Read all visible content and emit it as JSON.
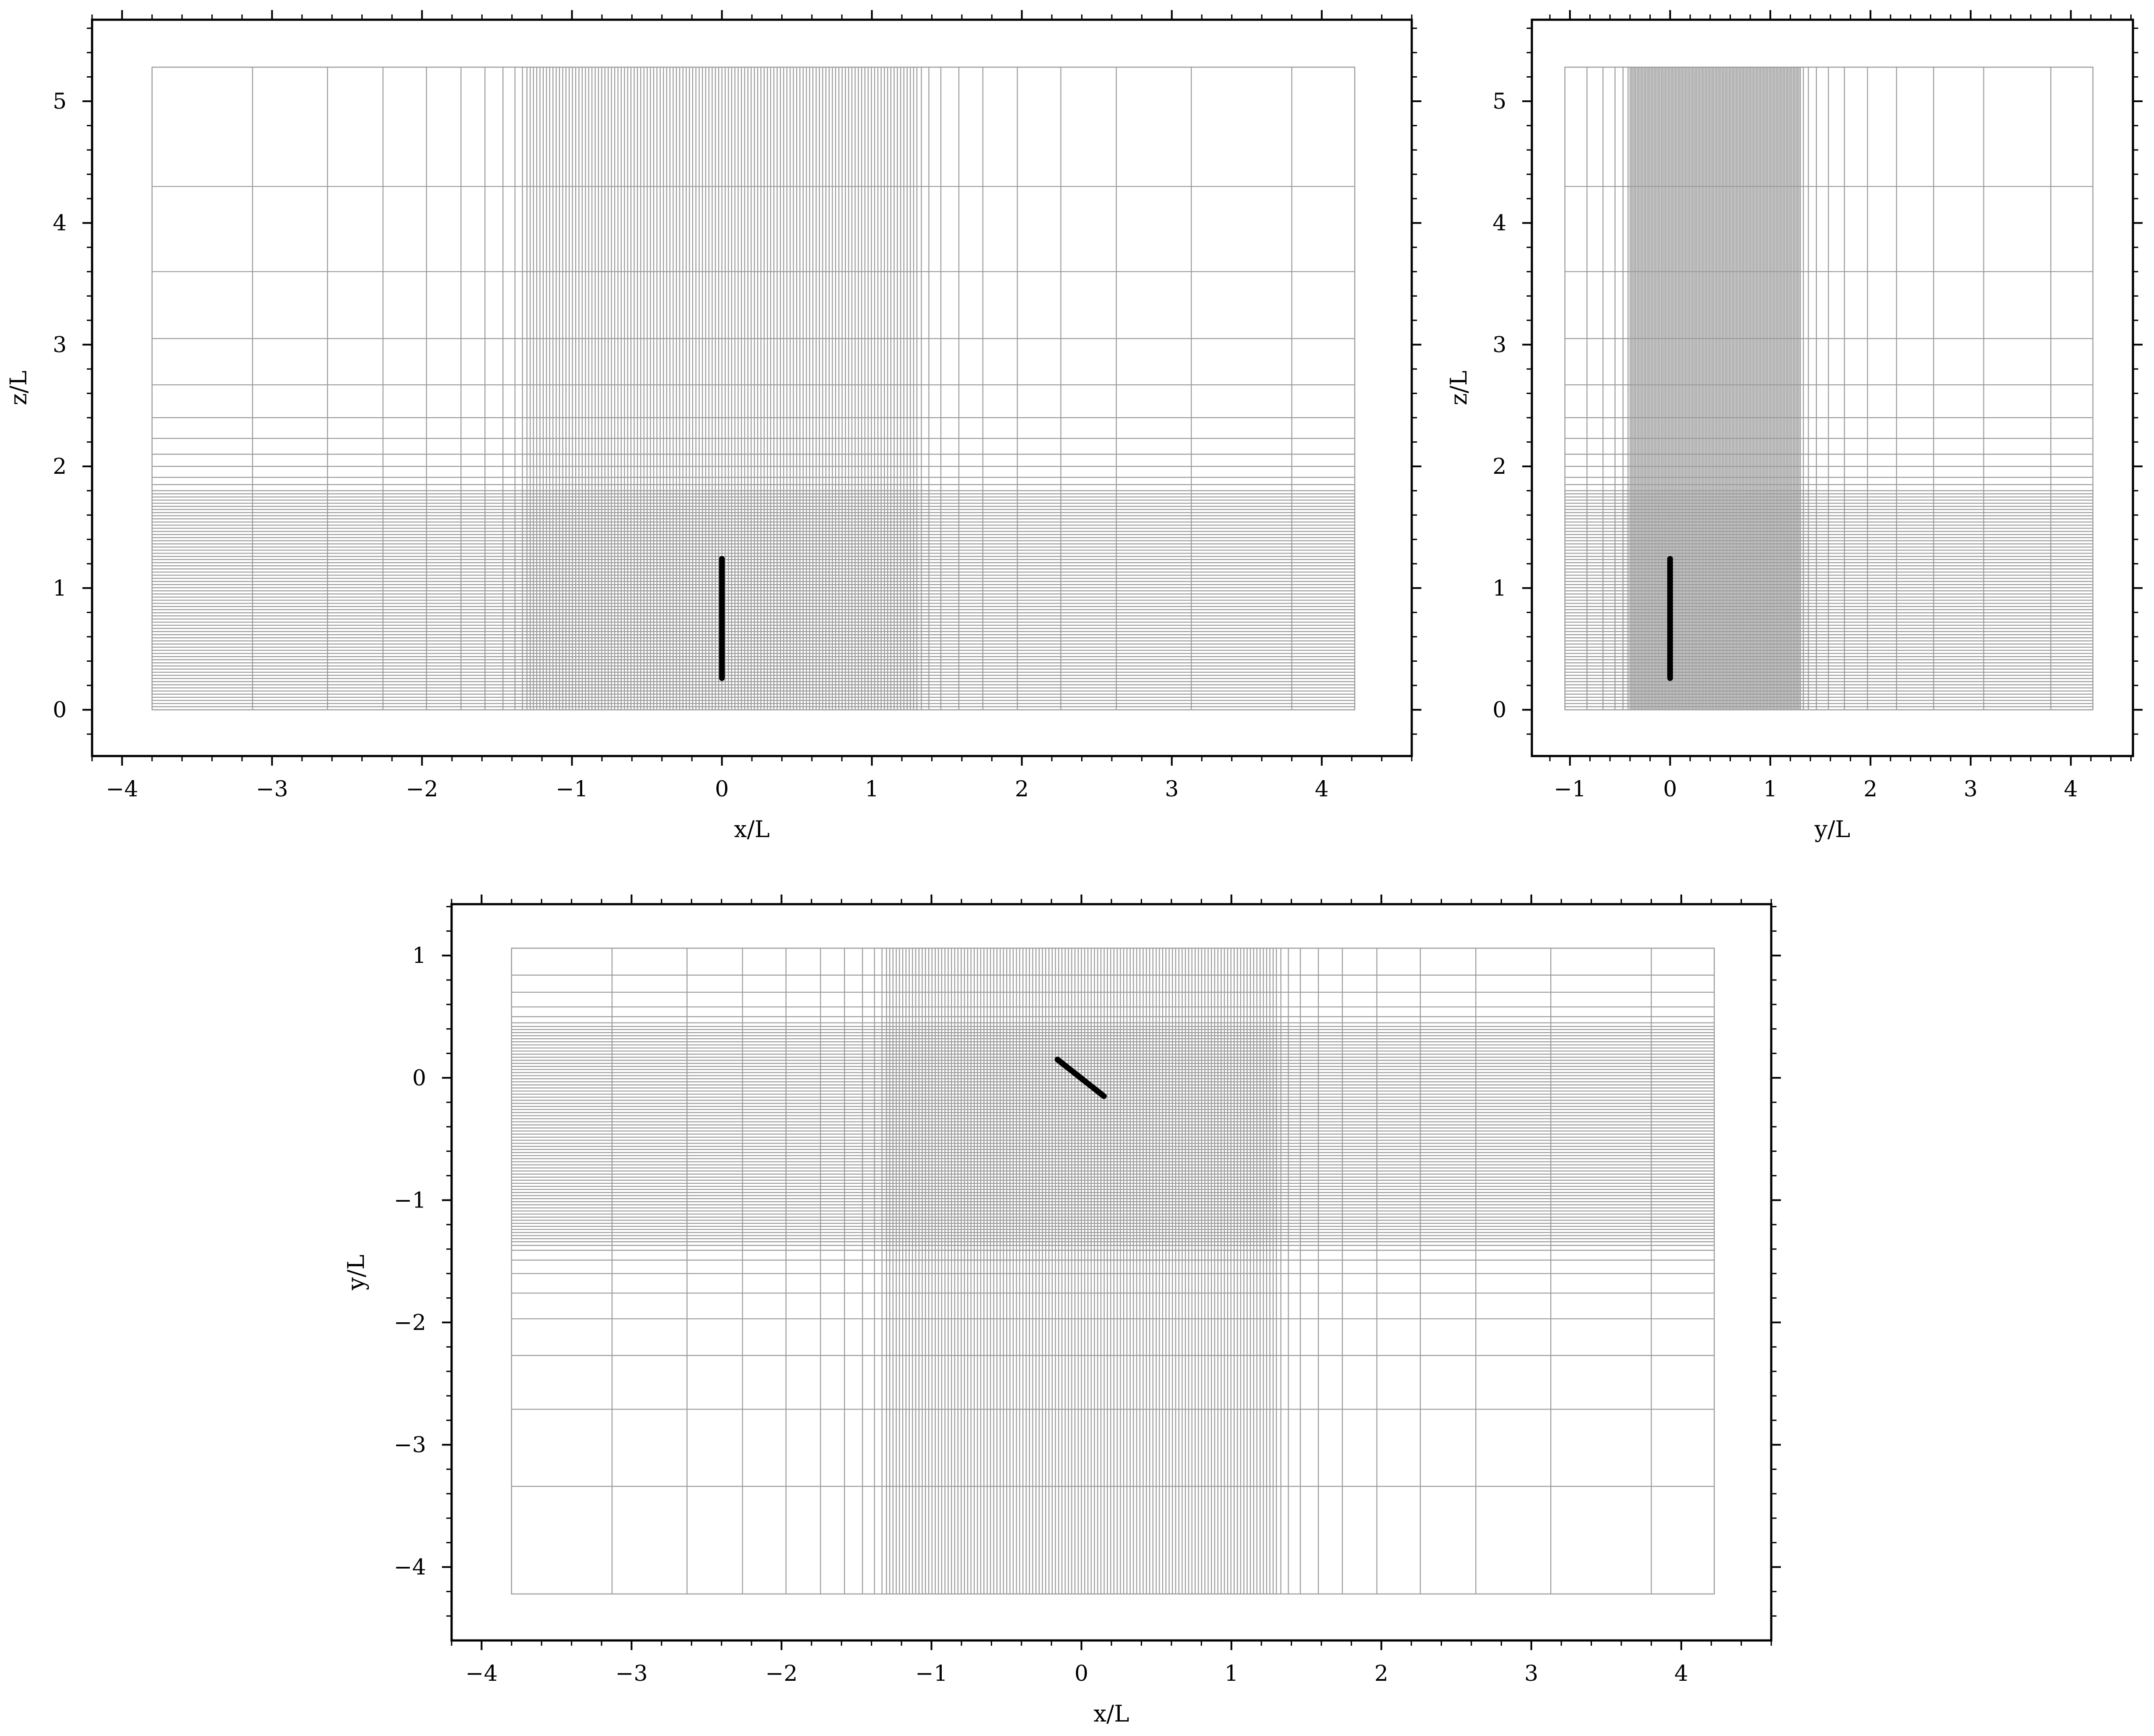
{
  "panels": [
    {
      "id": "xz",
      "xlabel": "x/L",
      "ylabel": "z/L",
      "xlim": [
        -4.2,
        4.6
      ],
      "ylim": [
        -0.38,
        5.67
      ],
      "xticks": [
        -4,
        -3,
        -2,
        -1,
        0,
        1,
        2,
        3,
        4
      ],
      "yticks": [
        0,
        1,
        2,
        3,
        4,
        5
      ],
      "xminor": 0.2,
      "yminor": 0.2,
      "domain": {
        "x": [
          -3.8,
          4.22
        ],
        "y": [
          0,
          5.28
        ]
      },
      "grid_x": {
        "coarse_left": [
          -3.8,
          -3.13,
          -2.63,
          -2.26,
          -1.97,
          -1.74,
          -1.58,
          -1.46,
          -1.38,
          -1.33
        ],
        "fine": [
          -1.3,
          1.3
        ],
        "coarse_right": [
          1.33,
          1.38,
          1.46,
          1.58,
          1.74,
          1.97,
          2.26,
          2.63,
          3.13,
          3.8,
          4.22
        ]
      },
      "grid_y": {
        "fine": [
          0,
          1.8
        ],
        "coarse": [
          1.85,
          1.91,
          2.0,
          2.1,
          2.23,
          2.4,
          2.67,
          3.05,
          3.6,
          4.3,
          5.28
        ]
      },
      "plate": [
        [
          0,
          0.26
        ],
        [
          0,
          1.24
        ]
      ]
    },
    {
      "id": "yz",
      "xlabel": "y/L",
      "ylabel": "z/L",
      "xlim": [
        -1.38,
        4.62
      ],
      "ylim": [
        -0.38,
        5.67
      ],
      "xticks": [
        -1,
        0,
        1,
        2,
        3,
        4
      ],
      "yticks": [
        0,
        1,
        2,
        3,
        4,
        5
      ],
      "xminor": 0.2,
      "yminor": 0.2,
      "domain": {
        "x": [
          -1.05,
          4.22
        ],
        "y": [
          0,
          5.28
        ]
      },
      "grid_x": {
        "coarse_left": [
          -1.05,
          -0.83,
          -0.67,
          -0.55,
          -0.47,
          -0.42
        ],
        "fine": [
          -0.4,
          1.3
        ],
        "coarse_right": [
          1.33,
          1.38,
          1.46,
          1.58,
          1.74,
          1.97,
          2.26,
          2.63,
          3.13,
          3.8,
          4.22
        ]
      },
      "grid_y": {
        "fine": [
          0,
          1.8
        ],
        "coarse": [
          1.85,
          1.91,
          2.0,
          2.1,
          2.23,
          2.4,
          2.67,
          3.05,
          3.6,
          4.3,
          5.28
        ]
      },
      "plate": [
        [
          0,
          0.26
        ],
        [
          0,
          1.24
        ]
      ]
    },
    {
      "id": "xy",
      "xlabel": "x/L",
      "ylabel": "y/L",
      "xlim": [
        -4.2,
        4.6
      ],
      "ylim": [
        -4.6,
        1.42
      ],
      "xticks": [
        -4,
        -3,
        -2,
        -1,
        0,
        1,
        2,
        3,
        4
      ],
      "yticks": [
        -4,
        -3,
        -2,
        -1,
        0,
        1
      ],
      "xminor": 0.2,
      "yminor": 0.2,
      "domain": {
        "x": [
          -3.8,
          4.22
        ],
        "y": [
          -4.22,
          1.06
        ]
      },
      "grid_x": {
        "coarse_left": [
          -3.8,
          -3.13,
          -2.63,
          -2.26,
          -1.97,
          -1.74,
          -1.58,
          -1.46,
          -1.38,
          -1.33
        ],
        "fine": [
          -1.3,
          1.3
        ],
        "coarse_right": [
          1.33,
          1.38,
          1.46,
          1.58,
          1.74,
          1.97,
          2.26,
          2.63,
          3.13,
          3.8,
          4.22
        ]
      },
      "grid_y": {
        "fine": [
          -1.34,
          0.42
        ],
        "coarse": [
          -4.22,
          -3.34,
          -2.71,
          -2.27,
          -1.97,
          -1.76,
          -1.6,
          -1.49,
          -1.41,
          -1.37,
          0.45,
          0.5,
          0.58,
          0.7,
          0.84,
          1.06
        ]
      },
      "plate": [
        [
          -0.16,
          0.15
        ],
        [
          0.15,
          -0.15
        ]
      ]
    }
  ]
}
